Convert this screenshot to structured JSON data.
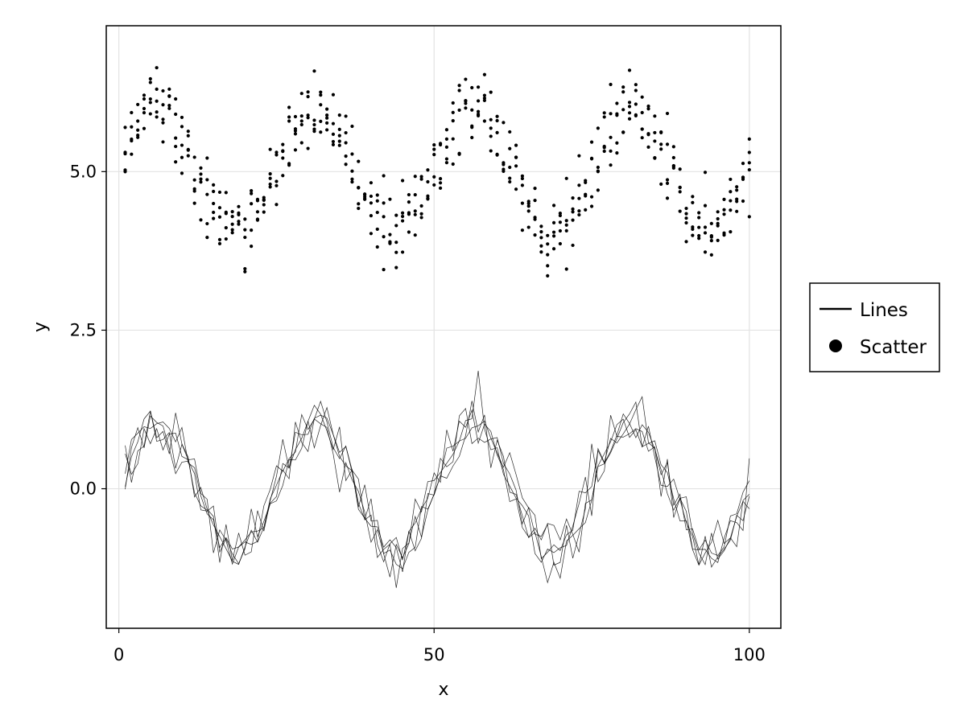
{
  "chart_data": {
    "type": "scatter",
    "title": "",
    "xlabel": "x",
    "ylabel": "y",
    "xlim": [
      -2,
      105
    ],
    "ylim": [
      -2.2,
      7.3
    ],
    "xticks": [
      0,
      50,
      100
    ],
    "xtick_labels": [
      "0",
      "50",
      "100"
    ],
    "yticks": [
      0.0,
      2.5,
      5.0
    ],
    "ytick_labels": [
      "0.0",
      "2.5",
      "5.0"
    ],
    "grid": true,
    "legend_position": "right",
    "legend": [
      {
        "label": "Lines",
        "marker": "line"
      },
      {
        "label": "Scatter",
        "marker": "circle"
      }
    ],
    "color": "#000000",
    "series": [
      {
        "kind": "scatter",
        "x_start": 1,
        "x_end": 100,
        "count_per_x": 5,
        "model": "y = 5 + sin(2*pi*x/25) + noise",
        "noise_sd": 0.3,
        "seeds": [
          101,
          102,
          103,
          104,
          105
        ]
      },
      {
        "kind": "lines",
        "x_start": 1,
        "x_end": 100,
        "count": 5,
        "model": "y = sin(2*pi*x/25) + noise",
        "noise_sd": 0.22,
        "seeds": [
          201,
          202,
          203,
          204,
          205
        ]
      }
    ]
  }
}
